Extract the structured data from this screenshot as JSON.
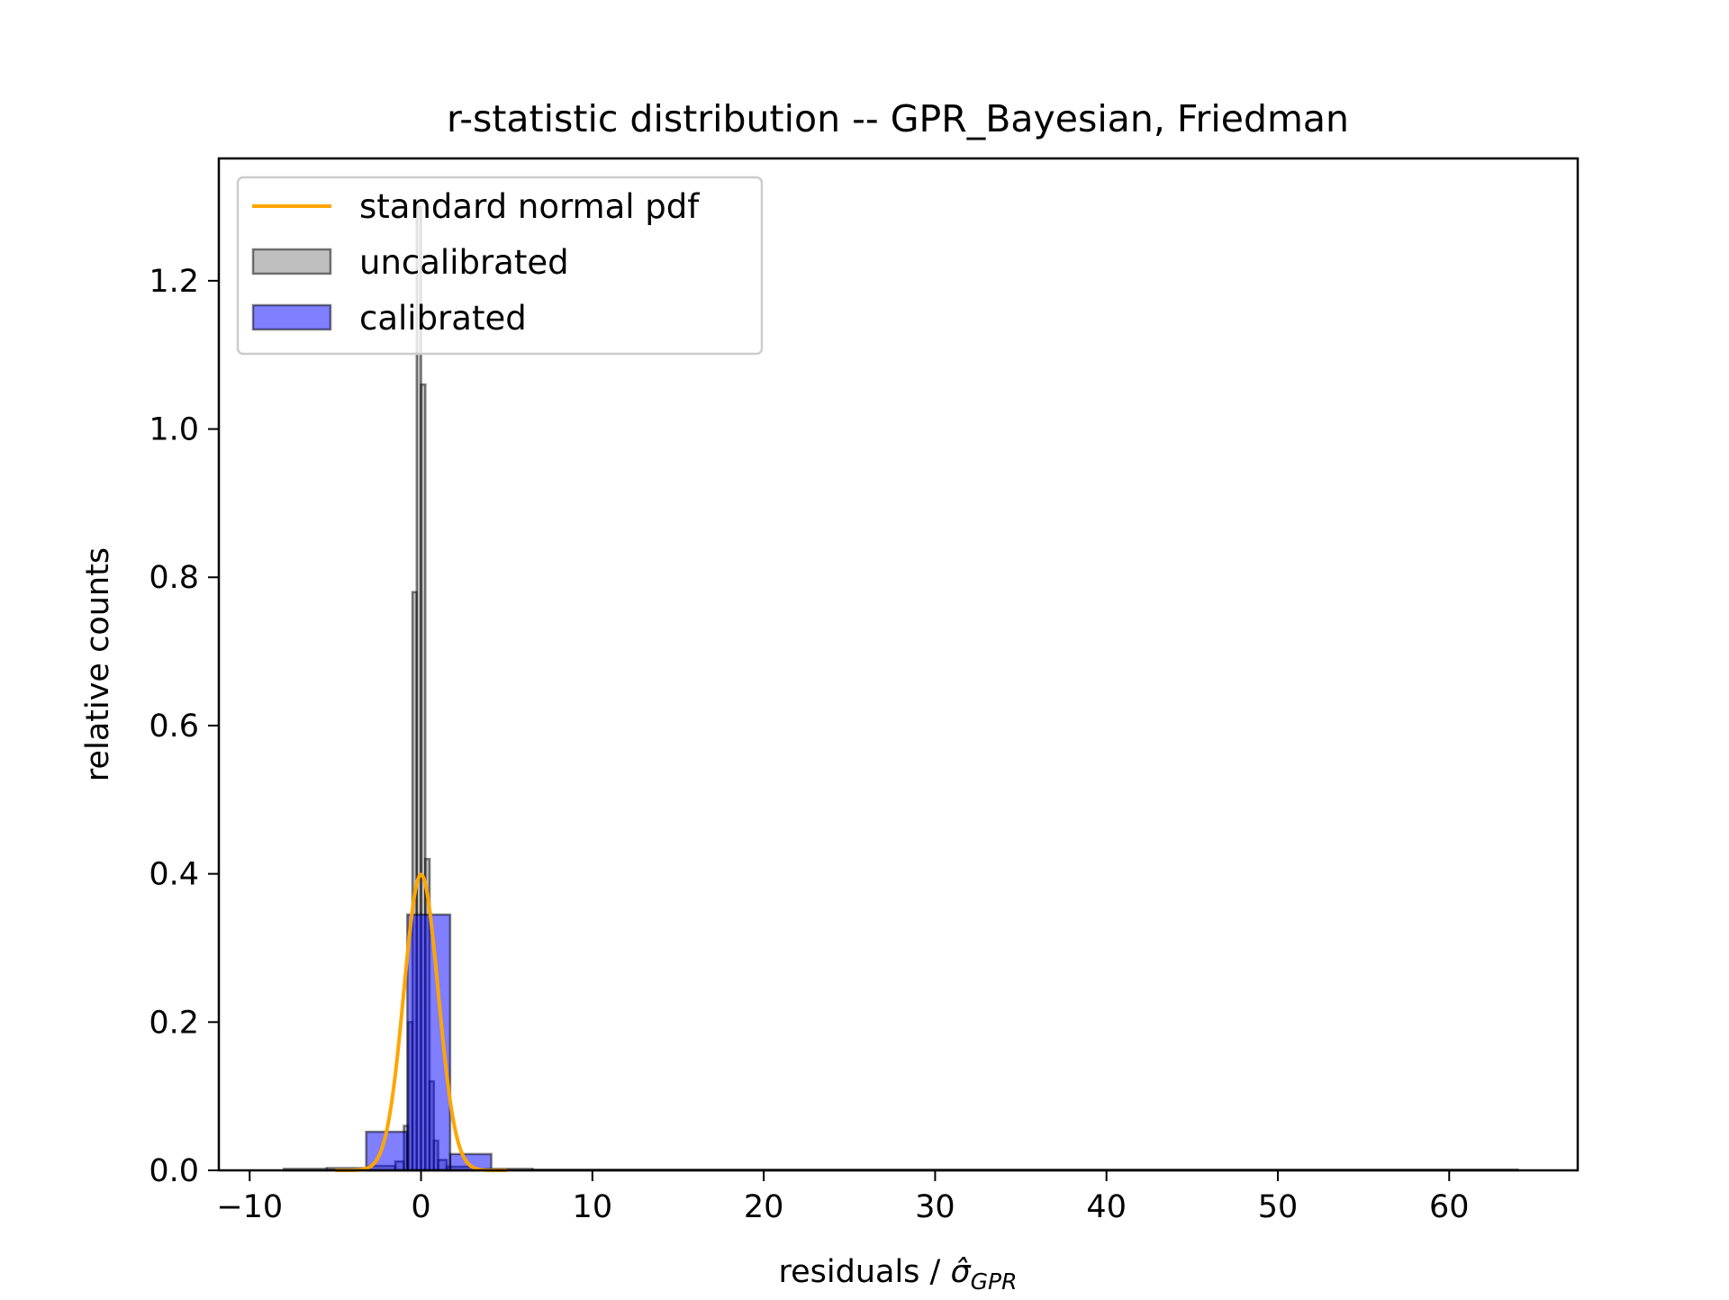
{
  "chart_data": {
    "type": "bar",
    "title": "r-statistic distribution -- GPR_Bayesian, Friedman",
    "xlabel_main": "residuals / ",
    "xlabel_symbol": "σ̂",
    "xlabel_subscript": "GPR",
    "ylabel": "relative counts",
    "xlim": [
      -11.8,
      67.5
    ],
    "ylim": [
      0,
      1.365
    ],
    "x_ticks": [
      -10,
      0,
      10,
      20,
      30,
      40,
      50,
      60
    ],
    "x_tick_labels": [
      "−10",
      "0",
      "10",
      "20",
      "30",
      "40",
      "50",
      "60"
    ],
    "y_ticks": [
      0.0,
      0.2,
      0.4,
      0.6,
      0.8,
      1.0,
      1.2
    ],
    "y_tick_labels": [
      "0.0",
      "0.2",
      "0.4",
      "0.6",
      "0.8",
      "1.0",
      "1.2"
    ],
    "grid": false,
    "legend_placement": "top-left",
    "colors": {
      "normal_pdf": "#ffa500",
      "uncalibrated_fill": "#808080",
      "uncalibrated_edge": "#000000",
      "calibrated_fill": "#0000ff",
      "calibrated_edge": "#000000"
    },
    "series": [
      {
        "name": "standard normal pdf",
        "kind": "line",
        "x_range": [
          -5,
          5
        ],
        "mean": 0,
        "std": 1
      },
      {
        "name": "uncalibrated",
        "kind": "histogram",
        "bins": [
          [
            -8,
            -5.5,
            0.002
          ],
          [
            -5.5,
            -3,
            0.003
          ],
          [
            -3,
            -1.5,
            0.006
          ],
          [
            -1.5,
            -1,
            0.012
          ],
          [
            -1,
            -0.75,
            0.06
          ],
          [
            -0.75,
            -0.5,
            0.2
          ],
          [
            -0.5,
            -0.25,
            0.78
          ],
          [
            -0.25,
            0,
            1.3
          ],
          [
            0,
            0.25,
            1.06
          ],
          [
            0.25,
            0.5,
            0.42
          ],
          [
            0.5,
            0.75,
            0.12
          ],
          [
            0.75,
            1,
            0.04
          ],
          [
            1,
            1.5,
            0.014
          ],
          [
            1.5,
            3,
            0.005
          ],
          [
            3,
            6.5,
            0.002
          ],
          [
            6.5,
            64,
            0.001
          ]
        ]
      },
      {
        "name": "calibrated",
        "kind": "histogram",
        "bins": [
          [
            -3.2,
            -0.8,
            0.052
          ],
          [
            -0.8,
            1.7,
            0.345
          ],
          [
            1.7,
            4.1,
            0.022
          ]
        ]
      }
    ]
  }
}
